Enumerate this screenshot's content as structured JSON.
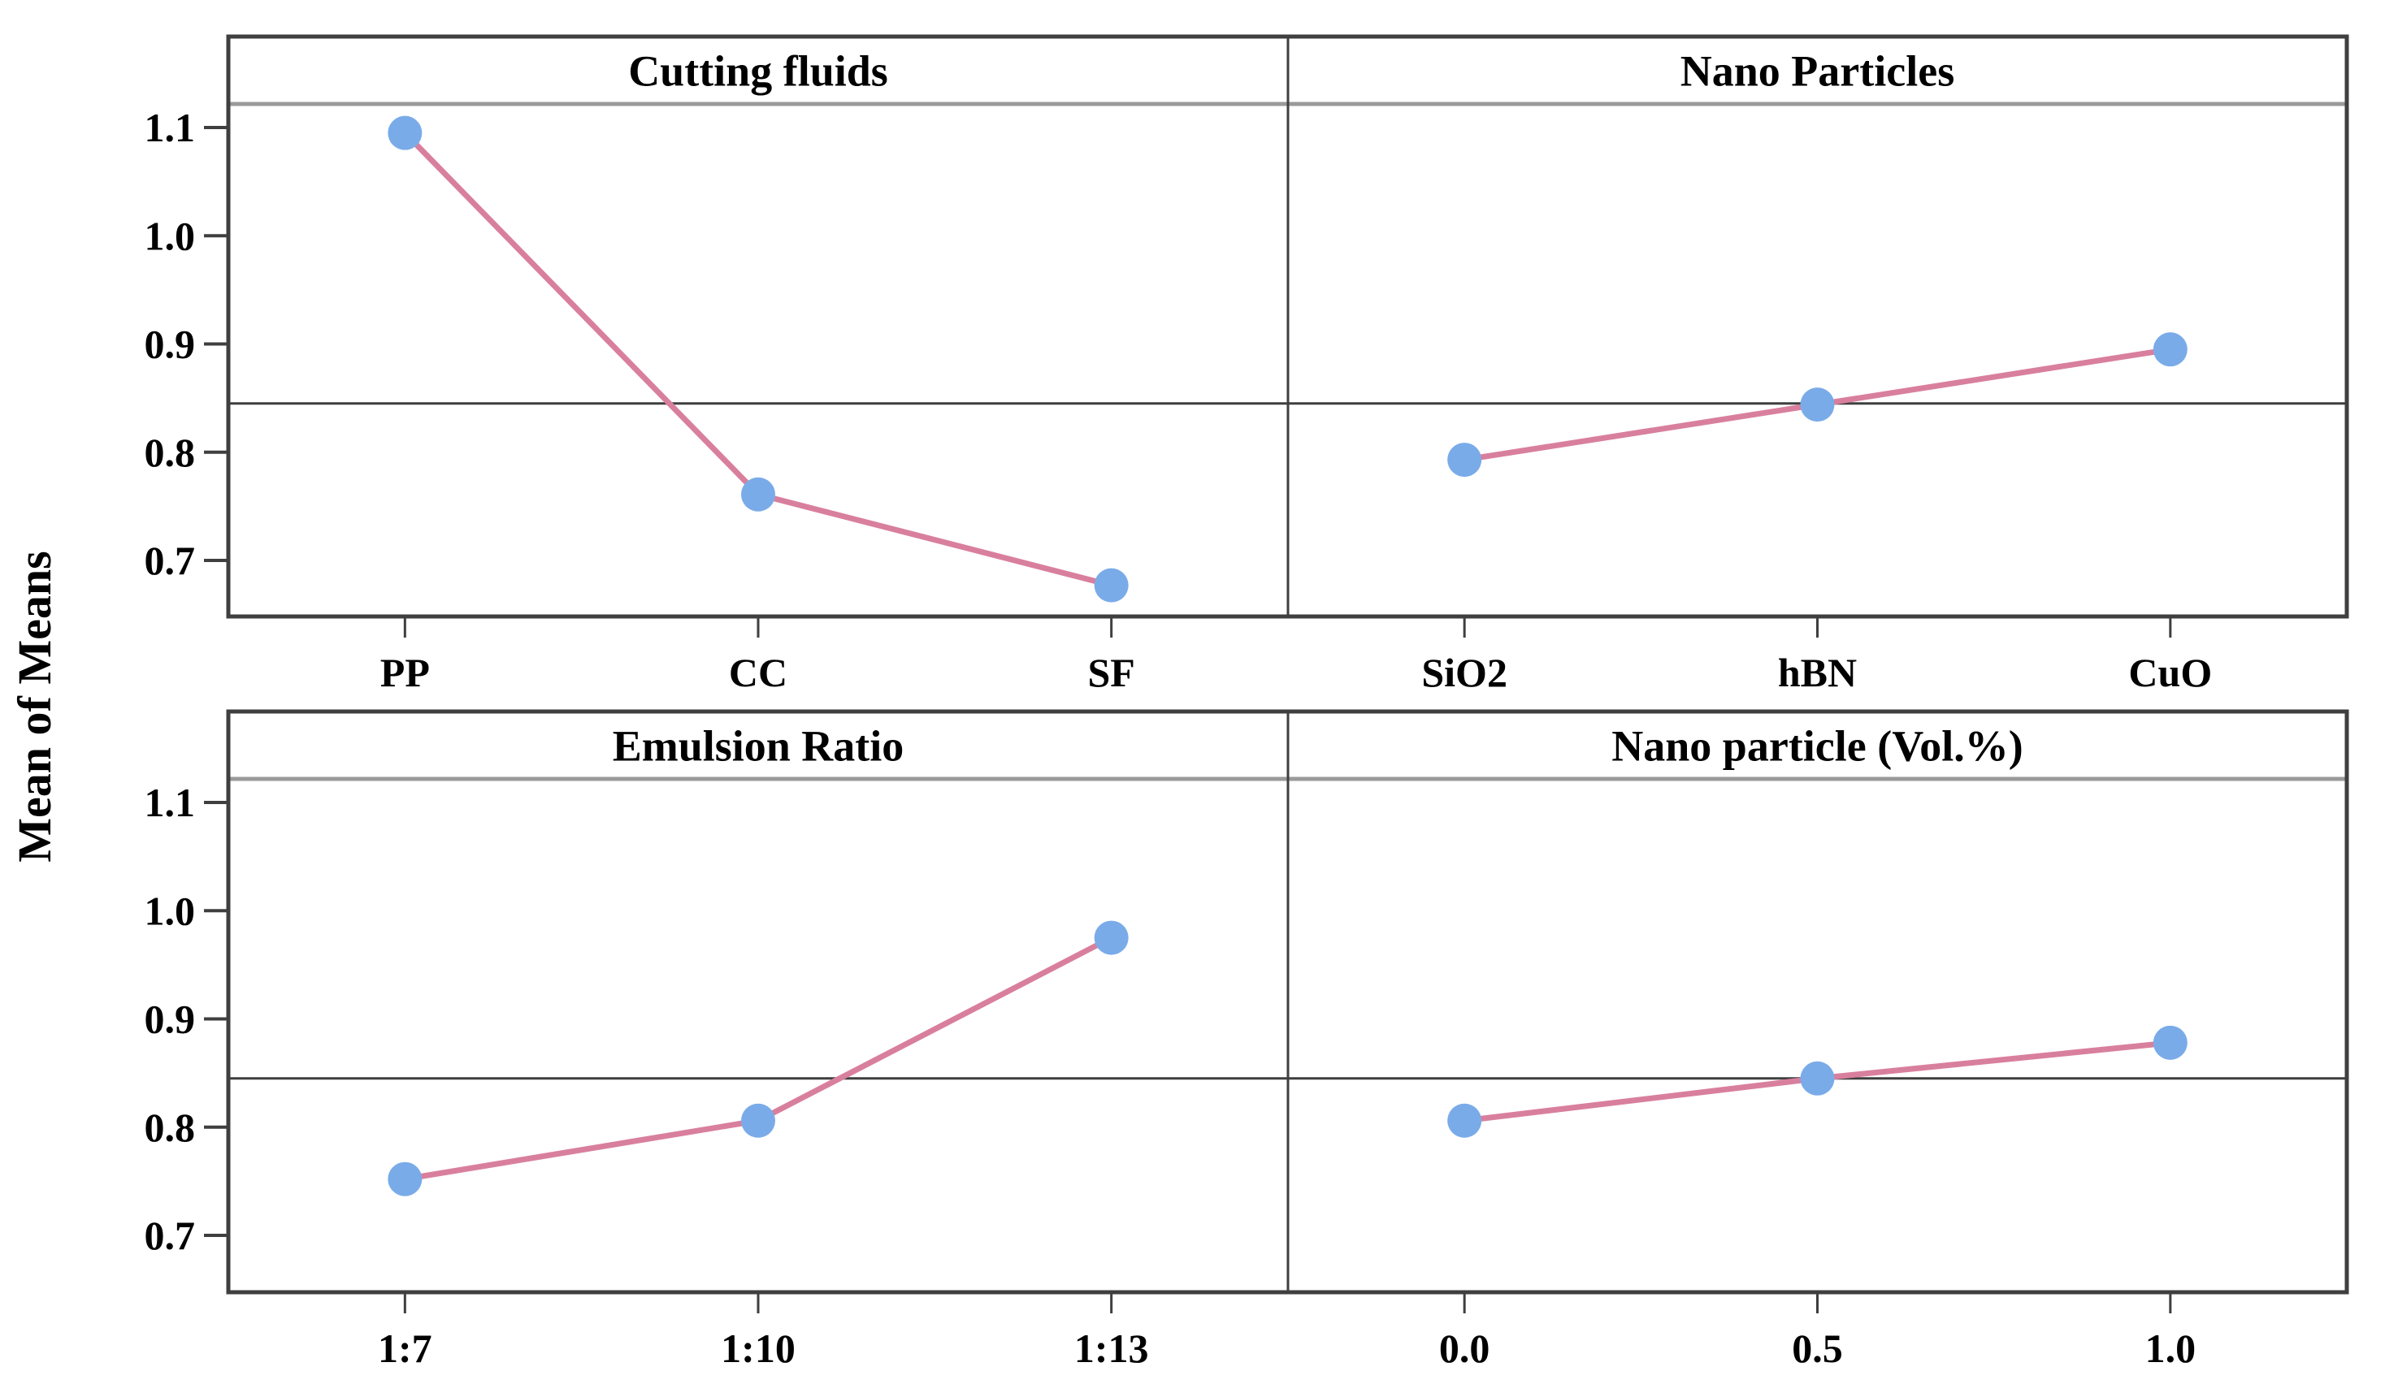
{
  "figure": {
    "y_axis_title": "Mean of Means",
    "y_tick_labels": [
      "1.1",
      "1.0",
      "0.9",
      "0.8",
      "0.7"
    ],
    "y_tick_values": [
      1.1,
      1.0,
      0.9,
      0.8,
      0.7
    ],
    "overall_mean_reference": 0.845,
    "colors": {
      "series_line": "#d97f9e",
      "marker_fill": "#7aabe9",
      "panel_border": "#3f3f3f",
      "title_band_separator": "#9a9a9a",
      "reference_line": "#3f3f3f",
      "background": "#ffffff",
      "text": "#000000"
    }
  },
  "chart_data": [
    {
      "type": "line",
      "title": "Cutting fluids",
      "categories": [
        "PP",
        "CC",
        "SF"
      ],
      "values": [
        1.095,
        0.761,
        0.677
      ],
      "ylabel": "Mean of Means",
      "ylim": [
        0.648,
        1.122
      ],
      "reference_line": 0.845,
      "grid": false,
      "panel_position": "top-left"
    },
    {
      "type": "line",
      "title": "Nano Particles",
      "categories": [
        "SiO2",
        "hBN",
        "CuO"
      ],
      "values": [
        0.793,
        0.844,
        0.895
      ],
      "ylabel": "Mean of Means",
      "ylim": [
        0.648,
        1.122
      ],
      "reference_line": 0.845,
      "grid": false,
      "panel_position": "top-right"
    },
    {
      "type": "line",
      "title": "Emulsion Ratio",
      "categories": [
        "1:7",
        "1:10",
        "1:13"
      ],
      "values": [
        0.752,
        0.806,
        0.975
      ],
      "ylabel": "Mean of Means",
      "ylim": [
        0.648,
        1.122
      ],
      "reference_line": 0.845,
      "grid": false,
      "panel_position": "bottom-left"
    },
    {
      "type": "line",
      "title": "Nano particle (Vol.%)",
      "categories": [
        "0.0",
        "0.5",
        "1.0"
      ],
      "values": [
        0.806,
        0.845,
        0.878
      ],
      "ylabel": "Mean of Means",
      "ylim": [
        0.648,
        1.122
      ],
      "reference_line": 0.845,
      "grid": false,
      "panel_position": "bottom-right"
    }
  ]
}
